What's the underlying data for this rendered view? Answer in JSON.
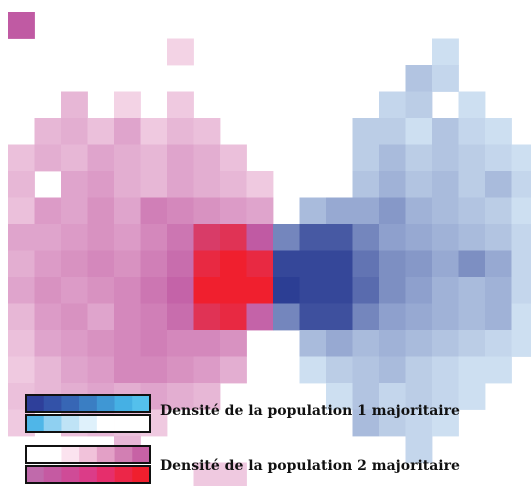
{
  "chart_data": {
    "type": "heatmap",
    "title": "",
    "xlabel": "",
    "ylabel": "",
    "grid": false,
    "value_range": [
      -1,
      1
    ],
    "encoding_note": "Signed majority index per cell: negative values = population 1 majority (blue ramp), positive values = population 2 majority (pink/red ramp), 0 = empty",
    "rows": [
      [
        0.7,
        0,
        0,
        0,
        0,
        0,
        0,
        0,
        0,
        0,
        0,
        0,
        0,
        0,
        0,
        0,
        0,
        0,
        0,
        0
      ],
      [
        0,
        0,
        0,
        0,
        0,
        0,
        0.05,
        0,
        0,
        0,
        0,
        0,
        0,
        0,
        0,
        0,
        -0.1,
        0,
        0,
        0
      ],
      [
        0,
        0,
        0,
        0,
        0,
        0,
        0,
        0,
        0,
        0,
        0,
        0,
        0,
        0,
        0,
        -0.25,
        -0.15,
        0,
        0,
        0
      ],
      [
        0,
        0,
        0.2,
        0,
        0.05,
        0,
        0.1,
        0,
        0,
        0,
        0,
        0,
        0,
        0,
        -0.15,
        -0.2,
        0,
        -0.1,
        0,
        0
      ],
      [
        0,
        0.2,
        0.25,
        0.15,
        0.3,
        0.1,
        0.2,
        0.15,
        0,
        0,
        0,
        0,
        0,
        -0.2,
        -0.2,
        -0.1,
        -0.25,
        -0.15,
        -0.1,
        0
      ],
      [
        0.15,
        0.25,
        0.2,
        0.3,
        0.25,
        0.2,
        0.3,
        0.25,
        0.15,
        0,
        0,
        0,
        0,
        -0.2,
        -0.3,
        -0.2,
        -0.25,
        -0.2,
        -0.15,
        -0.1
      ],
      [
        0.2,
        0,
        0.3,
        0.35,
        0.25,
        0.2,
        0.3,
        0.25,
        0.2,
        0.1,
        0,
        0,
        0,
        -0.25,
        -0.35,
        -0.25,
        -0.3,
        -0.2,
        -0.3,
        -0.15
      ],
      [
        0.15,
        0.35,
        0.3,
        0.4,
        0.3,
        0.5,
        0.45,
        0.4,
        0.35,
        0.3,
        0,
        -0.3,
        -0.4,
        -0.4,
        -0.5,
        -0.35,
        -0.3,
        -0.25,
        -0.2,
        -0.1
      ],
      [
        0.3,
        0.3,
        0.35,
        0.4,
        0.35,
        0.45,
        0.55,
        0.85,
        0.9,
        0.7,
        -0.6,
        -0.85,
        -0.85,
        -0.6,
        -0.45,
        -0.4,
        -0.35,
        -0.3,
        -0.25,
        -0.15
      ],
      [
        0.25,
        0.35,
        0.4,
        0.45,
        0.4,
        0.5,
        0.6,
        0.95,
        1.0,
        0.95,
        -0.95,
        -0.95,
        -0.95,
        -0.7,
        -0.55,
        -0.5,
        -0.4,
        -0.55,
        -0.4,
        -0.15
      ],
      [
        0.3,
        0.4,
        0.35,
        0.4,
        0.45,
        0.55,
        0.65,
        1.0,
        1.0,
        1.0,
        -1.0,
        -0.95,
        -0.95,
        -0.75,
        -0.55,
        -0.45,
        -0.35,
        -0.3,
        -0.35,
        -0.15
      ],
      [
        0.2,
        0.35,
        0.4,
        0.3,
        0.45,
        0.5,
        0.6,
        0.9,
        0.95,
        0.65,
        -0.6,
        -0.9,
        -0.9,
        -0.6,
        -0.45,
        -0.4,
        -0.35,
        -0.3,
        -0.35,
        -0.1
      ],
      [
        0.15,
        0.3,
        0.35,
        0.4,
        0.45,
        0.5,
        0.45,
        0.45,
        0.4,
        0,
        0,
        -0.3,
        -0.4,
        -0.3,
        -0.35,
        -0.3,
        -0.25,
        -0.2,
        -0.15,
        -0.1
      ],
      [
        0.1,
        0.2,
        0.3,
        0.35,
        0.45,
        0.45,
        0.4,
        0.35,
        0.25,
        0,
        0,
        -0.1,
        -0.2,
        -0.25,
        -0.3,
        -0.2,
        -0.15,
        -0.1,
        -0.1,
        0
      ],
      [
        0.15,
        0.2,
        0.25,
        0.3,
        0.25,
        0.3,
        0.25,
        0.2,
        0,
        0,
        0,
        0,
        -0.1,
        -0.25,
        -0.15,
        -0.2,
        -0.15,
        -0.1,
        0,
        0
      ],
      [
        0.1,
        0,
        0.15,
        0.2,
        0.15,
        0.1,
        0,
        0,
        0,
        0,
        0,
        0,
        0,
        -0.3,
        -0.2,
        -0.15,
        -0.1,
        0,
        0,
        0
      ],
      [
        0,
        0,
        0,
        0,
        0.2,
        0,
        0,
        0,
        0,
        0,
        0,
        0,
        0,
        0,
        0,
        -0.15,
        0,
        0,
        0,
        0
      ],
      [
        0,
        0,
        0,
        0,
        0,
        0,
        0,
        0.1,
        0.1,
        0,
        0,
        0,
        0,
        0,
        0,
        0,
        0,
        0,
        0,
        0
      ]
    ],
    "legend": {
      "position": "bottom-left",
      "entries": [
        {
          "label": "Densité de la population 1 majoritaire",
          "ramp": [
            "#2e3f9a",
            "#3352a8",
            "#3766b5",
            "#3a7ec3",
            "#3f97d4",
            "#45b0e4",
            "#54c0ec"
          ],
          "ramp_light": [
            "#4fb6e8",
            "#8fd0f1",
            "#bfe3f6",
            "#dff1fb",
            "#ffffff",
            "#ffffff",
            "#ffffff"
          ]
        },
        {
          "label": "Densité de la population 2 majoritaire",
          "ramp_light": [
            "#ffffff",
            "#ffffff",
            "#fbe3ef",
            "#f1c2da",
            "#e3a0c6",
            "#d27fb3",
            "#c762a5"
          ],
          "ramp": [
            "#c06aab",
            "#c55aa2",
            "#cf4b97",
            "#db3c88",
            "#e62e6c",
            "#ec2648",
            "#f01f2e"
          ]
        }
      ]
    },
    "colors": {
      "pop1_light": "#dff1fb",
      "pop1_dark": "#2c3e94",
      "pop2_light": "#f7dcea",
      "pop2_dark": "#f01f2e"
    }
  }
}
